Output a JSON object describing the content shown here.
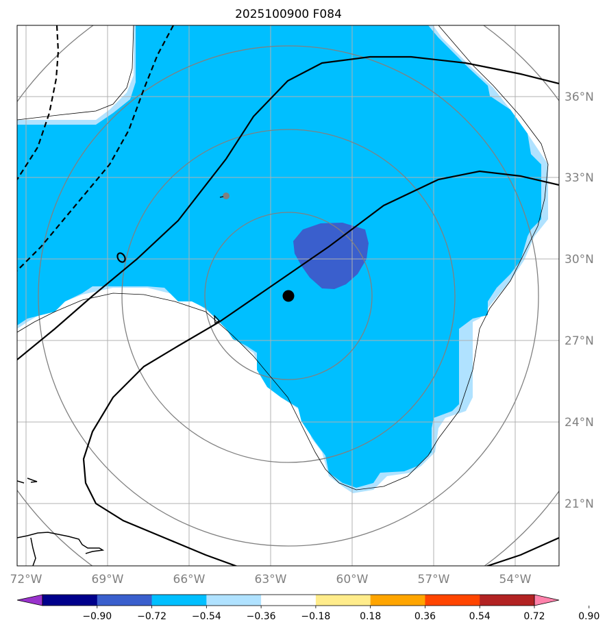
{
  "title": "2025100900 F084",
  "axes": {
    "lon_labels": [
      "72°W",
      "69°W",
      "66°W",
      "63°W",
      "60°W",
      "57°W",
      "54°W"
    ],
    "lat_labels": [
      "36°N",
      "33°N",
      "30°N",
      "27°N",
      "24°N",
      "21°N"
    ]
  },
  "storm_center": {
    "lon": "62.3°W",
    "lat": "28.6°N"
  },
  "colorbar": {
    "labels": [
      "−0.90",
      "−0.72",
      "−0.54",
      "−0.36",
      "−0.18",
      "0.18",
      "0.36",
      "0.54",
      "0.72",
      "0.90"
    ],
    "colors": [
      "#9932cc",
      "#00008b",
      "#3a5fcd",
      "#00bfff",
      "#b0e2ff",
      "#ffffff",
      "#ffec8b",
      "#ffa500",
      "#ff4500",
      "#b22222",
      "#ff82ab"
    ]
  },
  "colors": {
    "field_medium": "#00bfff",
    "field_light": "#b0e2ff",
    "field_dark": "#3a5fcd",
    "range_rings": "#808080",
    "grid": "#b0b0b0"
  }
}
